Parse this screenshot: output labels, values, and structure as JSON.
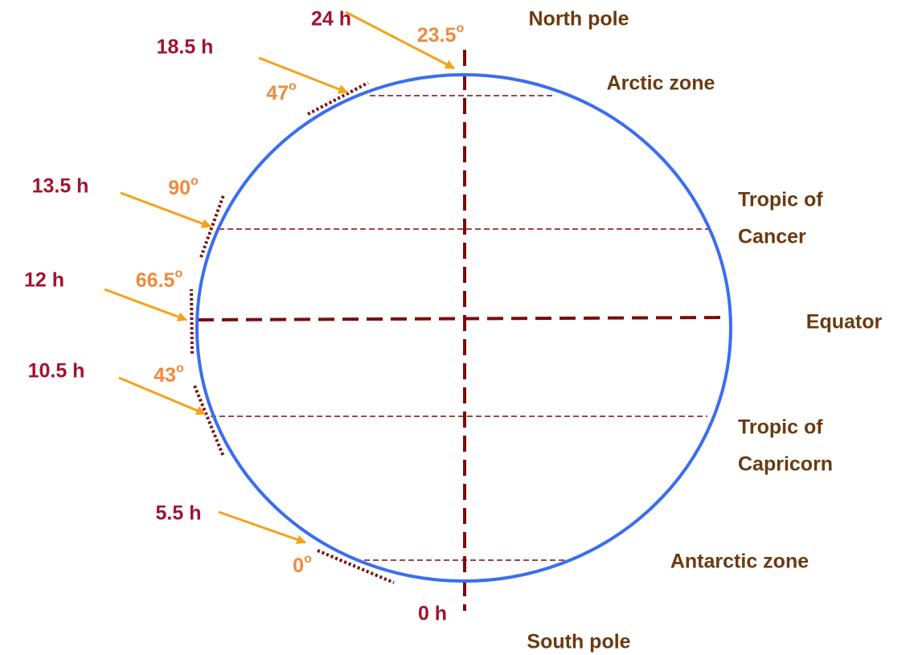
{
  "hours": [
    "24 h",
    "18.5 h",
    "13.5 h",
    "12 h",
    "10.5 h",
    "5.5 h",
    "0 h"
  ],
  "angles": [
    {
      "text": "23.5",
      "sup": "o"
    },
    {
      "text": "47",
      "sup": "o"
    },
    {
      "text": "90",
      "sup": "o"
    },
    {
      "text": "66.5",
      "sup": "o"
    },
    {
      "text": "43",
      "sup": "o"
    },
    {
      "text": "0",
      "sup": "o"
    }
  ],
  "zones": [
    {
      "lines": [
        "North pole"
      ]
    },
    {
      "lines": [
        "Arctic zone"
      ]
    },
    {
      "lines": [
        "Tropic of",
        "Cancer"
      ]
    },
    {
      "lines": [
        "Equator"
      ]
    },
    {
      "lines": [
        "Tropic of",
        "Capricorn"
      ]
    },
    {
      "lines": [
        "Antarctic zone"
      ]
    },
    {
      "lines": [
        "South pole"
      ]
    }
  ]
}
